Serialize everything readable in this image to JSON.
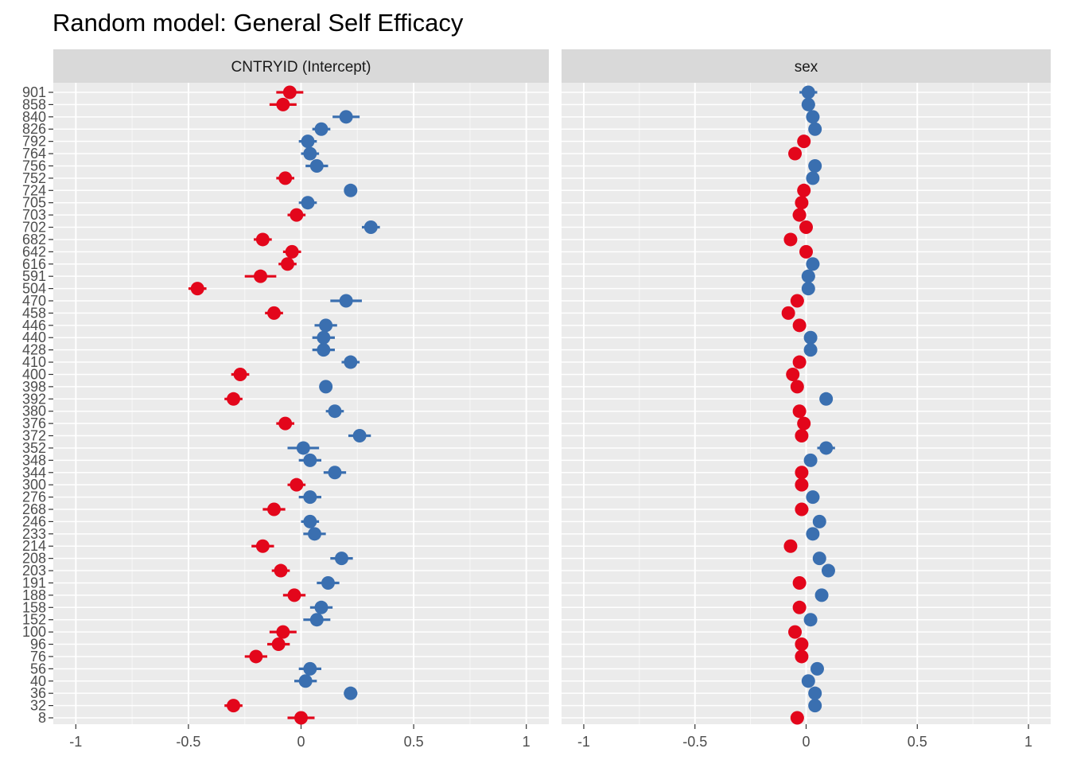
{
  "title": "Random model: General Self Efficacy",
  "colors": {
    "positive": "#3A6FB0",
    "negative": "#E3061B",
    "panel_bg": "#EBEBEB",
    "strip_bg": "#D9D9D9",
    "grid": "#FFFFFF"
  },
  "chart_data": {
    "type": "scatter",
    "subtype": "forest plot with error bars (faceted)",
    "title": "Random model: General Self Efficacy",
    "xlabel": "",
    "ylabel": "",
    "xlim": [
      -1.1,
      1.1
    ],
    "x_ticks": [
      "-1",
      "-0.5",
      "0",
      "0.5",
      "1"
    ],
    "grid": true,
    "color_rule": "blue when estimate > 0, red when estimate < 0",
    "categories": [
      "901",
      "858",
      "840",
      "826",
      "792",
      "764",
      "756",
      "752",
      "724",
      "705",
      "703",
      "702",
      "682",
      "642",
      "616",
      "591",
      "504",
      "470",
      "458",
      "446",
      "440",
      "428",
      "410",
      "400",
      "398",
      "392",
      "380",
      "376",
      "372",
      "352",
      "348",
      "344",
      "300",
      "276",
      "268",
      "246",
      "233",
      "214",
      "208",
      "203",
      "191",
      "188",
      "158",
      "152",
      "100",
      "96",
      "76",
      "56",
      "40",
      "36",
      "32",
      "8"
    ],
    "facets": [
      {
        "label": "CNTRYID (Intercept)",
        "estimates": [
          -0.05,
          -0.08,
          0.2,
          0.09,
          0.03,
          0.04,
          0.07,
          -0.07,
          0.22,
          0.03,
          -0.02,
          0.31,
          -0.17,
          -0.04,
          -0.06,
          -0.18,
          -0.46,
          0.2,
          -0.12,
          0.11,
          0.1,
          0.1,
          0.22,
          -0.27,
          0.11,
          -0.3,
          0.15,
          -0.07,
          0.26,
          0.01,
          0.04,
          0.15,
          -0.02,
          0.04,
          -0.12,
          0.04,
          0.06,
          -0.17,
          0.18,
          -0.09,
          0.12,
          -0.03,
          0.09,
          0.07,
          -0.08,
          -0.1,
          -0.2,
          0.04,
          0.02,
          0.22,
          -0.3,
          0.0
        ],
        "errors": [
          0.06,
          0.06,
          0.06,
          0.04,
          0.04,
          0.04,
          0.05,
          0.04,
          0.0,
          0.04,
          0.04,
          0.04,
          0.04,
          0.04,
          0.04,
          0.07,
          0.04,
          0.07,
          0.04,
          0.05,
          0.05,
          0.05,
          0.04,
          0.04,
          0.0,
          0.04,
          0.04,
          0.04,
          0.05,
          0.07,
          0.05,
          0.05,
          0.04,
          0.05,
          0.05,
          0.04,
          0.05,
          0.05,
          0.05,
          0.04,
          0.05,
          0.05,
          0.05,
          0.06,
          0.06,
          0.05,
          0.05,
          0.05,
          0.05,
          0.03,
          0.04,
          0.06
        ]
      },
      {
        "label": "sex",
        "estimates": [
          0.01,
          0.01,
          0.03,
          0.04,
          -0.01,
          -0.05,
          0.04,
          0.03,
          -0.01,
          -0.02,
          -0.03,
          0.0,
          -0.07,
          0.0,
          0.03,
          0.01,
          0.01,
          -0.04,
          -0.08,
          -0.03,
          0.02,
          0.02,
          -0.03,
          -0.06,
          -0.04,
          0.09,
          -0.03,
          -0.01,
          -0.02,
          0.09,
          0.02,
          -0.02,
          -0.02,
          0.03,
          -0.02,
          0.06,
          0.03,
          -0.07,
          0.06,
          0.1,
          -0.03,
          0.07,
          -0.03,
          0.02,
          -0.05,
          -0.02,
          -0.02,
          0.05,
          0.01,
          0.04,
          0.04,
          -0.04
        ],
        "errors": [
          0.04,
          0.03,
          0.03,
          0.0,
          0.0,
          0.0,
          0.0,
          0.0,
          0.0,
          0.0,
          0.03,
          0.0,
          0.0,
          0.0,
          0.03,
          0.03,
          0.0,
          0.03,
          0.0,
          0.0,
          0.0,
          0.0,
          0.0,
          0.0,
          0.0,
          0.0,
          0.0,
          0.0,
          0.0,
          0.04,
          0.0,
          0.0,
          0.0,
          0.03,
          0.03,
          0.0,
          0.0,
          0.0,
          0.0,
          0.0,
          0.0,
          0.0,
          0.0,
          0.0,
          0.0,
          0.0,
          0.0,
          0.0,
          0.0,
          0.0,
          0.0,
          0.03
        ]
      }
    ]
  }
}
